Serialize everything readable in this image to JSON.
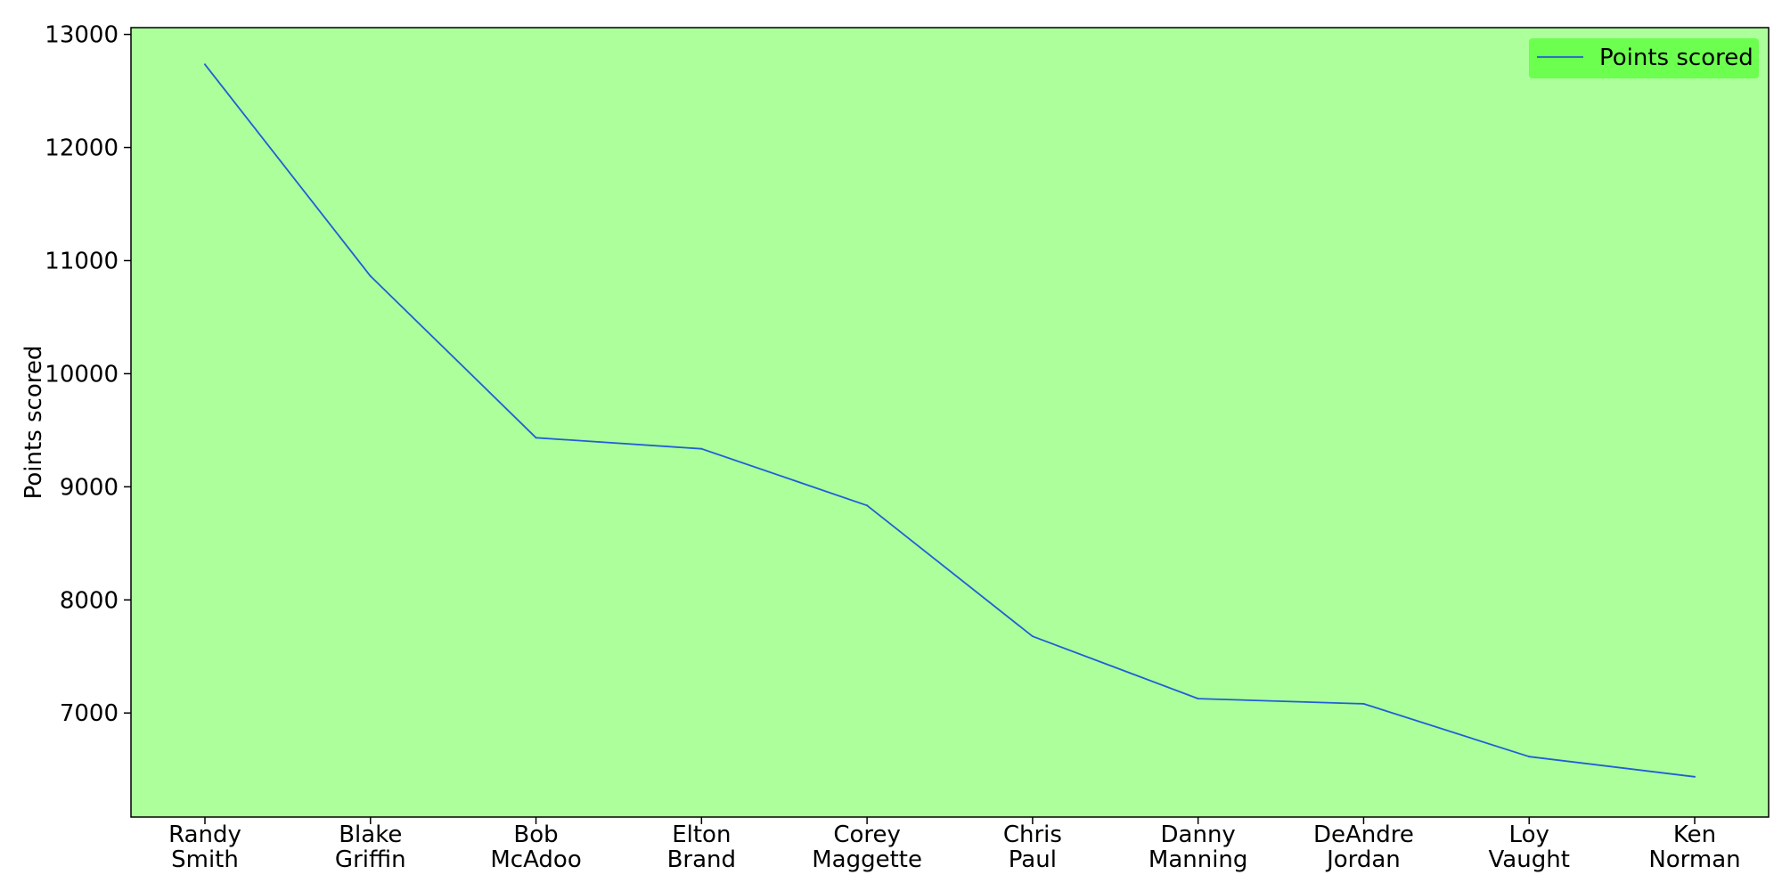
{
  "chart_data": {
    "type": "line",
    "categories": [
      [
        "Randy",
        "Smith"
      ],
      [
        "Blake",
        "Griffin"
      ],
      [
        "Bob",
        "McAdoo"
      ],
      [
        "Elton",
        "Brand"
      ],
      [
        "Corey",
        "Maggette"
      ],
      [
        "Chris",
        "Paul"
      ],
      [
        "Danny",
        "Manning"
      ],
      [
        "DeAndre",
        "Jordan"
      ],
      [
        "Loy",
        "Vaught"
      ],
      [
        "Ken",
        "Norman"
      ]
    ],
    "series": [
      {
        "name": "Points scored",
        "values": [
          12735,
          10863,
          9434,
          9336,
          8835,
          7678,
          7127,
          7081,
          6614,
          6436
        ],
        "color": "#1f5fd6"
      }
    ],
    "ylabel": "Points scored",
    "yticks": [
      7000,
      8000,
      9000,
      10000,
      11000,
      12000,
      13000
    ],
    "ylim": [
      6080,
      13060
    ],
    "grid": false,
    "legend": {
      "placement": "top-right",
      "background": "#6cff50",
      "label": "Points scored"
    },
    "colors": {
      "plot_background": "#adff9c",
      "line": "#1f5fd6",
      "legend_background": "#6cff50"
    }
  }
}
